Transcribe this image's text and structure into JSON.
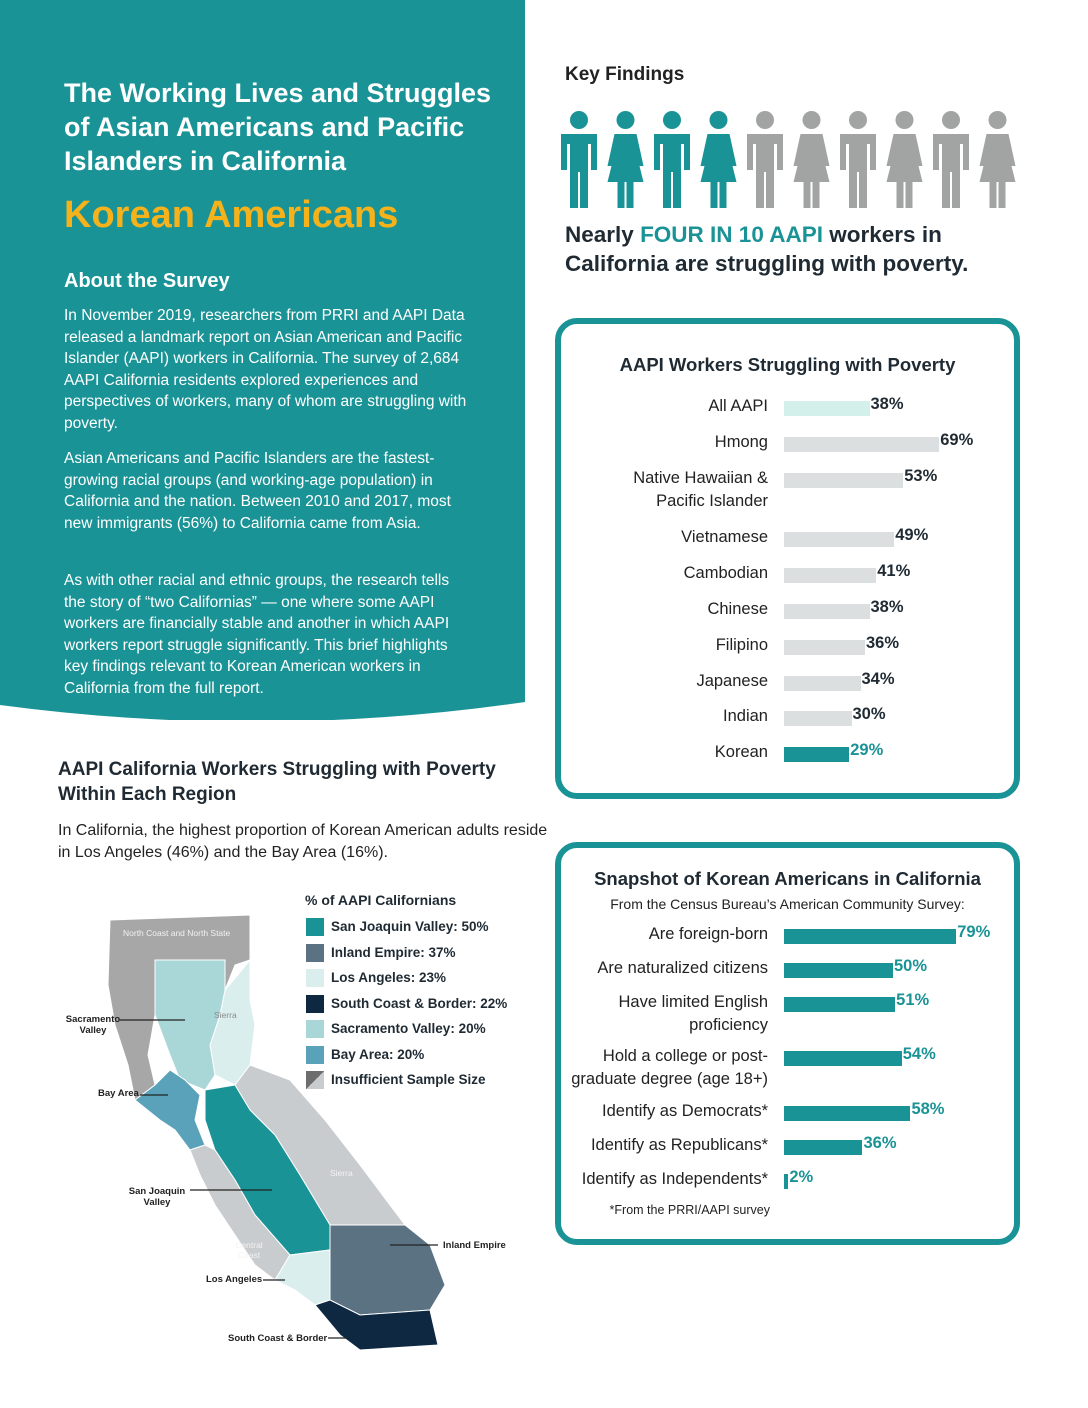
{
  "header": {
    "title": "The Working Lives and Struggles of Asian Americans and Pacific Islanders in California",
    "subtitle": "Korean Americans"
  },
  "about": {
    "heading": "About the Survey",
    "paragraphs": [
      "In November 2019, researchers from PRRI and AAPI Data released a landmark report on Asian American and Pacific Islander (AAPI) workers in California. The survey of 2,684 AAPI California residents explored experiences and perspectives of workers, many of whom are struggling with poverty.",
      "Asian Americans and Pacific Islanders are the fastest-growing racial groups (and working-age population) in California and the nation. Between 2010 and 2017, most new immigrants (56%) to California came from Asia.",
      "As with other racial and ethnic groups, the research tells the story of “two Californias” — one where some AAPI workers are financially stable and another in which AAPI workers report struggle significantly. This brief highlights key findings relevant to Korean American workers in California from the full report."
    ]
  },
  "key_findings": {
    "heading": "Key Findings",
    "text_before": "Nearly ",
    "text_highlight": "FOUR IN 10 AAPI",
    "text_after": " workers in California are struggling with poverty.",
    "people": [
      "male",
      "female",
      "male",
      "female",
      "male",
      "female",
      "male",
      "female",
      "male",
      "female"
    ],
    "highlighted_people": 4
  },
  "poverty_chart": {
    "title": "AAPI Workers Struggling with Poverty",
    "colors": {
      "all": "#d3f0ea",
      "group": "#dcdfe0",
      "korean": "#1a9396"
    },
    "items": [
      {
        "label": "All AAPI",
        "value": 38,
        "value_label": "38%"
      },
      {
        "label": "Hmong",
        "value": 69,
        "value_label": "69%"
      },
      {
        "label": "Native Hawaiian &\nPacific Islander",
        "value": 53,
        "value_label": "53%"
      },
      {
        "label": "Vietnamese",
        "value": 49,
        "value_label": "49%"
      },
      {
        "label": "Cambodian",
        "value": 41,
        "value_label": "41%"
      },
      {
        "label": "Chinese",
        "value": 38,
        "value_label": "38%"
      },
      {
        "label": "Filipino",
        "value": 36,
        "value_label": "36%"
      },
      {
        "label": "Japanese",
        "value": 34,
        "value_label": "34%"
      },
      {
        "label": "Indian",
        "value": 30,
        "value_label": "30%"
      },
      {
        "label": "Korean",
        "value": 29,
        "value_label": "29%"
      }
    ]
  },
  "snapshot_chart": {
    "title": "Snapshot of Korean Americans in California",
    "subtitle": "From the Census Bureau’s American Community Survey:",
    "footnote": "*From the PRRI/AAPI survey",
    "color": "#1a9396",
    "items": [
      {
        "label": "Are foreign-born",
        "value": 79,
        "value_label": "79%"
      },
      {
        "label": "Are naturalized citizens",
        "value": 50,
        "value_label": "50%"
      },
      {
        "label": "Have limited English\nproficiency",
        "value": 51,
        "value_label": "51%"
      },
      {
        "label": "Hold a college or post-\ngraduate degree (age 18+)",
        "value": 54,
        "value_label": "54%"
      },
      {
        "label": "Identify as Democrats*",
        "value": 58,
        "value_label": "58%"
      },
      {
        "label": "Identify as Republicans*",
        "value": 36,
        "value_label": "36%"
      },
      {
        "label": "Identify as Independents*",
        "value": 2,
        "value_label": "2%"
      }
    ]
  },
  "chart_data": [
    {
      "type": "bar",
      "title": "AAPI Workers Struggling with Poverty",
      "categories": [
        "All AAPI",
        "Hmong",
        "Native Hawaiian & Pacific Islander",
        "Vietnamese",
        "Cambodian",
        "Chinese",
        "Filipino",
        "Japanese",
        "Indian",
        "Korean"
      ],
      "values": [
        38,
        69,
        53,
        49,
        41,
        38,
        36,
        34,
        30,
        29
      ],
      "orientation": "horizontal"
    },
    {
      "type": "bar",
      "title": "Snapshot of Korean Americans in California",
      "categories": [
        "Are foreign-born",
        "Are naturalized citizens",
        "Have limited English proficiency",
        "Hold a college or post-graduate degree (age 18+)",
        "Identify as Democrats*",
        "Identify as Republicans*",
        "Identify as Independents*"
      ],
      "values": [
        79,
        50,
        51,
        54,
        58,
        36,
        2
      ],
      "orientation": "horizontal"
    }
  ],
  "regions": {
    "heading": "AAPI California Workers Struggling with Poverty Within Each Region",
    "description": "In California, the highest proportion of Korean American adults reside in Los Angeles (46%) and the Bay Area (16%).",
    "legend_title": "% of AAPI Californians",
    "legend": [
      {
        "label": "San Joaquin Valley: 50%",
        "color": "#1a9396"
      },
      {
        "label": "Inland Empire: 37%",
        "color": "#5b7282"
      },
      {
        "label": "Los Angeles: 23%",
        "color": "#dbeeee"
      },
      {
        "label": "South Coast & Border: 22%",
        "color": "#0e2842"
      },
      {
        "label": "Sacramento Valley: 20%",
        "color": "#a9d6d6"
      },
      {
        "label": "Bay Area: 20%",
        "color": "#5aa2ba"
      },
      {
        "label": "Insufficient Sample Size",
        "color": "#a7a7a7"
      }
    ],
    "map_labels": {
      "north_coast": "North Coast and North State",
      "sierra_north": "Sierra",
      "sierra_south": "Sierra",
      "central_coast": "Central Coast",
      "sacramento": "Sacramento Valley",
      "bay_area": "Bay Area",
      "san_joaquin": "San Joaquin Valley",
      "inland_empire": "Inland Empire",
      "los_angeles": "Los Angeles",
      "south_coast": "South Coast & Border"
    }
  }
}
